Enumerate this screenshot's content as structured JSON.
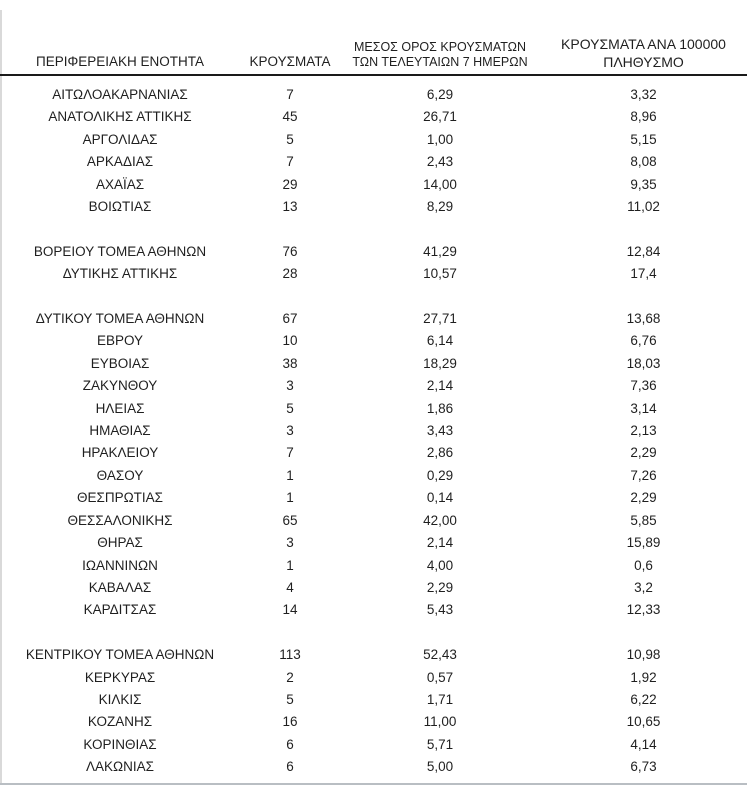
{
  "colors": {
    "text": "#1f1f1f",
    "header_rule": "#1a1a1a",
    "bottom_rule": "#b9bec3",
    "left_edge": "#d9d9d9",
    "background": "#ffffff"
  },
  "headers": {
    "col1": "ΠΕΡΙΦΕΡΕΙΑΚΗ ΕΝΟΤΗΤΑ",
    "col2": "ΚΡΟΥΣΜΑΤΑ",
    "col3_line1": "ΜΕΣΟΣ ΟΡΟΣ ΚΡΟΥΣΜΑΤΩΝ",
    "col3_line2": "ΤΩΝ ΤΕΛΕΥΤΑΙΩΝ 7 ΗΜΕΡΩΝ",
    "col4_line1": "ΚΡΟΥΣΜΑΤΑ ΑΝΑ 100000",
    "col4_line2": "ΠΛΗΘΥΣΜΟ"
  },
  "chart_data": {
    "type": "table",
    "columns": [
      "ΠΕΡΙΦΕΡΕΙΑΚΗ ΕΝΟΤΗΤΑ",
      "ΚΡΟΥΣΜΑΤΑ",
      "ΜΕΣΟΣ ΟΡΟΣ ΚΡΟΥΣΜΑΤΩΝ ΤΩΝ ΤΕΛΕΥΤΑΙΩΝ 7 ΗΜΕΡΩΝ",
      "ΚΡΟΥΣΜΑΤΑ ΑΝΑ 100000 ΠΛΗΘΥΣΜΟ"
    ],
    "decimal_separator": ",",
    "groups": [
      {
        "rows": [
          [
            "ΑΙΤΩΛΟΑΚΑΡΝΑΝΙΑΣ",
            "7",
            "6,29",
            "3,32"
          ],
          [
            "ΑΝΑΤΟΛΙΚΗΣ ΑΤΤΙΚΗΣ",
            "45",
            "26,71",
            "8,96"
          ],
          [
            "ΑΡΓΟΛΙΔΑΣ",
            "5",
            "1,00",
            "5,15"
          ],
          [
            "ΑΡΚΑΔΙΑΣ",
            "7",
            "2,43",
            "8,08"
          ],
          [
            "ΑΧΑΪΑΣ",
            "29",
            "14,00",
            "9,35"
          ],
          [
            "ΒΟΙΩΤΙΑΣ",
            "13",
            "8,29",
            "11,02"
          ]
        ]
      },
      {
        "rows": [
          [
            "ΒΟΡΕΙΟΥ ΤΟΜΕΑ ΑΘΗΝΩΝ",
            "76",
            "41,29",
            "12,84"
          ],
          [
            "ΔΥΤΙΚΗΣ ΑΤΤΙΚΗΣ",
            "28",
            "10,57",
            "17,4"
          ]
        ]
      },
      {
        "rows": [
          [
            "ΔΥΤΙΚΟΥ ΤΟΜΕΑ ΑΘΗΝΩΝ",
            "67",
            "27,71",
            "13,68"
          ],
          [
            "ΕΒΡΟΥ",
            "10",
            "6,14",
            "6,76"
          ],
          [
            "ΕΥΒΟΙΑΣ",
            "38",
            "18,29",
            "18,03"
          ],
          [
            "ΖΑΚΥΝΘΟΥ",
            "3",
            "2,14",
            "7,36"
          ],
          [
            "ΗΛΕΙΑΣ",
            "5",
            "1,86",
            "3,14"
          ],
          [
            "ΗΜΑΘΙΑΣ",
            "3",
            "3,43",
            "2,13"
          ],
          [
            "ΗΡΑΚΛΕΙΟΥ",
            "7",
            "2,86",
            "2,29"
          ],
          [
            "ΘΑΣΟΥ",
            "1",
            "0,29",
            "7,26"
          ],
          [
            "ΘΕΣΠΡΩΤΙΑΣ",
            "1",
            "0,14",
            "2,29"
          ],
          [
            "ΘΕΣΣΑΛΟΝΙΚΗΣ",
            "65",
            "42,00",
            "5,85"
          ],
          [
            "ΘΗΡΑΣ",
            "3",
            "2,14",
            "15,89"
          ],
          [
            "ΙΩΑΝΝΙΝΩΝ",
            "1",
            "4,00",
            "0,6"
          ],
          [
            "ΚΑΒΑΛΑΣ",
            "4",
            "2,29",
            "3,2"
          ],
          [
            "ΚΑΡΔΙΤΣΑΣ",
            "14",
            "5,43",
            "12,33"
          ]
        ]
      },
      {
        "rows": [
          [
            "ΚΕΝΤΡΙΚΟΥ ΤΟΜΕΑ ΑΘΗΝΩΝ",
            "113",
            "52,43",
            "10,98"
          ],
          [
            "ΚΕΡΚΥΡΑΣ",
            "2",
            "0,57",
            "1,92"
          ],
          [
            "ΚΙΛΚΙΣ",
            "5",
            "1,71",
            "6,22"
          ],
          [
            "ΚΟΖΑΝΗΣ",
            "16",
            "11,00",
            "10,65"
          ],
          [
            "ΚΟΡΙΝΘΙΑΣ",
            "6",
            "5,71",
            "4,14"
          ],
          [
            "ΛΑΚΩΝΙΑΣ",
            "6",
            "5,00",
            "6,73"
          ]
        ]
      }
    ]
  }
}
